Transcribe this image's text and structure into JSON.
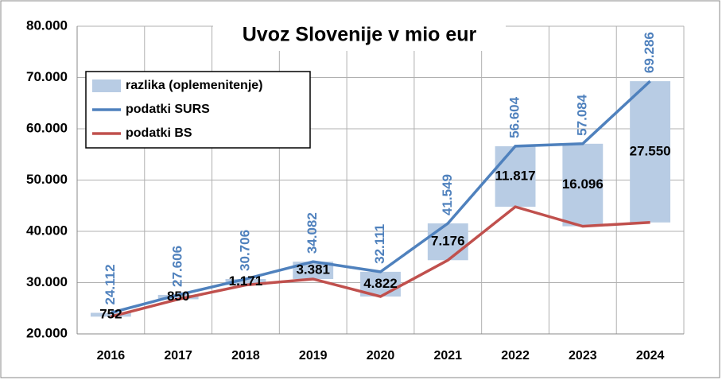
{
  "chart_data": {
    "type": "bar-line",
    "title": "Uvoz Slovenije v mio eur",
    "categories": [
      "2016",
      "2017",
      "2018",
      "2019",
      "2020",
      "2021",
      "2022",
      "2023",
      "2024"
    ],
    "series": [
      {
        "name": "razlika (oplemenitenje)",
        "type": "bar",
        "color": "#b8cce4",
        "stack_on": 2,
        "values": [
          752,
          850,
          1171,
          3381,
          4822,
          7176,
          11817,
          16096,
          27550
        ],
        "value_labels": [
          "752",
          "850",
          "1.171",
          "3.381",
          "4.822",
          "7.176",
          "11.817",
          "16.096",
          "27.550"
        ]
      },
      {
        "name": "podatki SURS",
        "type": "line",
        "color": "#4f81bd",
        "values": [
          24112,
          27606,
          30706,
          34082,
          32111,
          41549,
          56604,
          57084,
          69286
        ],
        "value_labels": [
          "24.112",
          "27.606",
          "30.706",
          "34.082",
          "32.111",
          "41.549",
          "56.604",
          "57.084",
          "69.286"
        ]
      },
      {
        "name": "podatki BS",
        "type": "line",
        "color": "#c0504d",
        "values": [
          23360,
          26756,
          29535,
          30701,
          27289,
          34373,
          44787,
          40988,
          41736
        ]
      }
    ],
    "ylim": [
      20000,
      80000
    ],
    "yticks": [
      {
        "value": 20000,
        "label": "20.000"
      },
      {
        "value": 30000,
        "label": "30.000"
      },
      {
        "value": 40000,
        "label": "40.000"
      },
      {
        "value": 50000,
        "label": "50.000"
      },
      {
        "value": 60000,
        "label": "60.000"
      },
      {
        "value": 70000,
        "label": "70.000"
      },
      {
        "value": 80000,
        "label": "80.000"
      }
    ],
    "grid": true,
    "legend": "upper left"
  }
}
